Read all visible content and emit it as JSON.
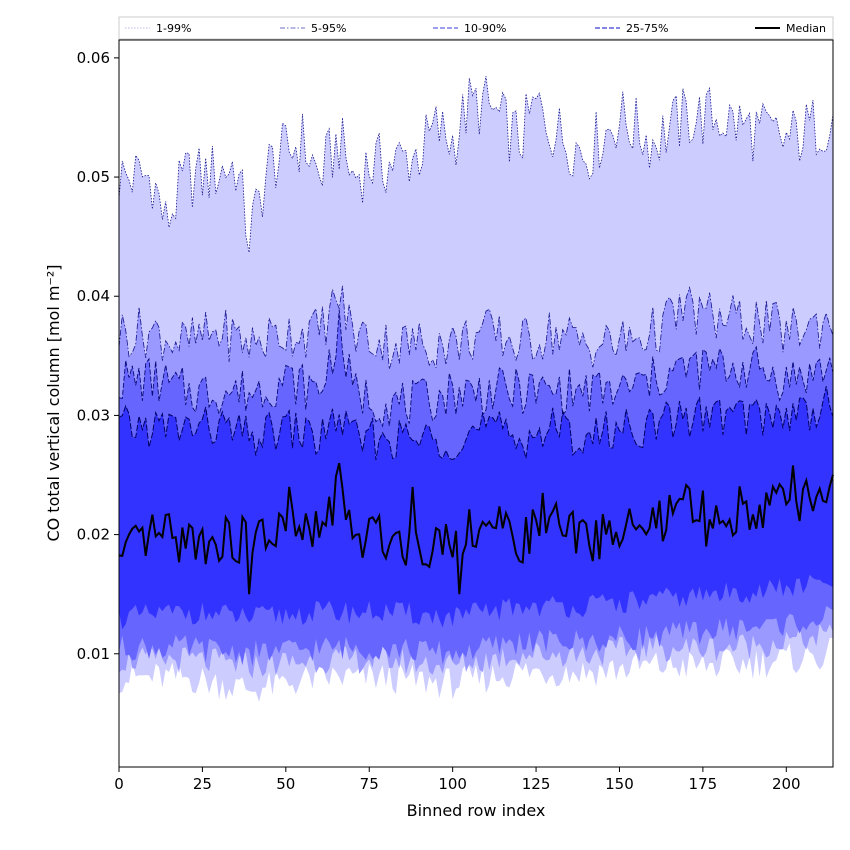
{
  "chart_data": {
    "type": "area",
    "title": "",
    "xlabel": "Binned row index",
    "ylabel": "CO total vertical column [mol m⁻²]",
    "xlim": [
      0,
      214
    ],
    "ylim": [
      0.0005,
      0.0615
    ],
    "xticks": [
      0,
      25,
      50,
      75,
      100,
      125,
      150,
      175,
      200
    ],
    "yticks": [
      0.01,
      0.02,
      0.03,
      0.04,
      0.05,
      0.06
    ],
    "ytick_labels": [
      "0.01",
      "0.02",
      "0.03",
      "0.04",
      "0.05",
      "0.06"
    ],
    "grid": false,
    "legend_position": "top",
    "n_points": 215,
    "legend": [
      {
        "label": "1-99%",
        "color": "#c8c8f0",
        "style": "dotted"
      },
      {
        "label": "5-95%",
        "color": "#8c8cd8",
        "style": "dashdot"
      },
      {
        "label": "10-90%",
        "color": "#6464e6",
        "style": "dashed"
      },
      {
        "label": "25-75%",
        "color": "#3c3cd2",
        "style": "dashed"
      },
      {
        "label": "Median",
        "color": "#000000",
        "style": "solid"
      }
    ],
    "bands": [
      {
        "name": "1-99%",
        "fill": "#ccccff",
        "upper_keys": [
          [
            0,
            0.05
          ],
          [
            5,
            0.05
          ],
          [
            10,
            0.05
          ],
          [
            14,
            0.046
          ],
          [
            20,
            0.05
          ],
          [
            25,
            0.05
          ],
          [
            35,
            0.051
          ],
          [
            39,
            0.045
          ],
          [
            45,
            0.051
          ],
          [
            50,
            0.052
          ],
          [
            55,
            0.053
          ],
          [
            60,
            0.05
          ],
          [
            66,
            0.053
          ],
          [
            70,
            0.05
          ],
          [
            75,
            0.051
          ],
          [
            80,
            0.051
          ],
          [
            90,
            0.052
          ],
          [
            95,
            0.054
          ],
          [
            100,
            0.053
          ],
          [
            105,
            0.056
          ],
          [
            110,
            0.056
          ],
          [
            120,
            0.053
          ],
          [
            125,
            0.056
          ],
          [
            130,
            0.054
          ],
          [
            140,
            0.052
          ],
          [
            150,
            0.055
          ],
          [
            160,
            0.053
          ],
          [
            170,
            0.055
          ],
          [
            180,
            0.055
          ],
          [
            190,
            0.054
          ],
          [
            200,
            0.053
          ],
          [
            214,
            0.055
          ]
        ],
        "lower_keys": [
          [
            0,
            0.008
          ],
          [
            20,
            0.008
          ],
          [
            40,
            0.007
          ],
          [
            60,
            0.008
          ],
          [
            80,
            0.008
          ],
          [
            100,
            0.0075
          ],
          [
            120,
            0.0085
          ],
          [
            140,
            0.0085
          ],
          [
            160,
            0.009
          ],
          [
            180,
            0.009
          ],
          [
            200,
            0.0095
          ],
          [
            214,
            0.01
          ]
        ]
      },
      {
        "name": "5-95%",
        "fill": "#9999ff",
        "upper_keys": [
          [
            0,
            0.037
          ],
          [
            10,
            0.037
          ],
          [
            20,
            0.036
          ],
          [
            30,
            0.037
          ],
          [
            40,
            0.036
          ],
          [
            50,
            0.037
          ],
          [
            60,
            0.037
          ],
          [
            66,
            0.04
          ],
          [
            70,
            0.037
          ],
          [
            80,
            0.036
          ],
          [
            90,
            0.036
          ],
          [
            100,
            0.036
          ],
          [
            110,
            0.037
          ],
          [
            120,
            0.036
          ],
          [
            130,
            0.037
          ],
          [
            140,
            0.036
          ],
          [
            150,
            0.036
          ],
          [
            160,
            0.037
          ],
          [
            170,
            0.039
          ],
          [
            180,
            0.038
          ],
          [
            190,
            0.038
          ],
          [
            200,
            0.037
          ],
          [
            214,
            0.038
          ]
        ],
        "lower_keys": [
          [
            0,
            0.0095
          ],
          [
            20,
            0.0095
          ],
          [
            40,
            0.009
          ],
          [
            60,
            0.0095
          ],
          [
            80,
            0.0095
          ],
          [
            100,
            0.009
          ],
          [
            120,
            0.01
          ],
          [
            140,
            0.01
          ],
          [
            160,
            0.0105
          ],
          [
            180,
            0.0105
          ],
          [
            200,
            0.011
          ],
          [
            214,
            0.0115
          ]
        ]
      },
      {
        "name": "10-90%",
        "fill": "#6666ff",
        "upper_keys": [
          [
            0,
            0.033
          ],
          [
            10,
            0.033
          ],
          [
            20,
            0.032
          ],
          [
            30,
            0.032
          ],
          [
            40,
            0.032
          ],
          [
            50,
            0.033
          ],
          [
            60,
            0.032
          ],
          [
            66,
            0.037
          ],
          [
            70,
            0.032
          ],
          [
            80,
            0.031
          ],
          [
            90,
            0.031
          ],
          [
            100,
            0.032
          ],
          [
            110,
            0.032
          ],
          [
            120,
            0.032
          ],
          [
            130,
            0.032
          ],
          [
            140,
            0.032
          ],
          [
            150,
            0.032
          ],
          [
            160,
            0.033
          ],
          [
            170,
            0.034
          ],
          [
            180,
            0.034
          ],
          [
            190,
            0.034
          ],
          [
            200,
            0.033
          ],
          [
            214,
            0.034
          ]
        ],
        "lower_keys": [
          [
            0,
            0.0105
          ],
          [
            20,
            0.0105
          ],
          [
            40,
            0.01
          ],
          [
            60,
            0.0105
          ],
          [
            80,
            0.0105
          ],
          [
            100,
            0.01
          ],
          [
            120,
            0.011
          ],
          [
            140,
            0.011
          ],
          [
            160,
            0.0115
          ],
          [
            180,
            0.012
          ],
          [
            200,
            0.0125
          ],
          [
            214,
            0.013
          ]
        ]
      },
      {
        "name": "25-75%",
        "fill": "#3333ff",
        "upper_keys": [
          [
            0,
            0.029
          ],
          [
            10,
            0.029
          ],
          [
            20,
            0.029
          ],
          [
            30,
            0.029
          ],
          [
            40,
            0.028
          ],
          [
            50,
            0.029
          ],
          [
            60,
            0.028
          ],
          [
            66,
            0.03
          ],
          [
            70,
            0.028
          ],
          [
            80,
            0.028
          ],
          [
            90,
            0.028
          ],
          [
            100,
            0.028
          ],
          [
            110,
            0.029
          ],
          [
            120,
            0.028
          ],
          [
            130,
            0.029
          ],
          [
            140,
            0.028
          ],
          [
            150,
            0.029
          ],
          [
            160,
            0.029
          ],
          [
            170,
            0.03
          ],
          [
            180,
            0.03
          ],
          [
            190,
            0.03
          ],
          [
            200,
            0.03
          ],
          [
            214,
            0.031
          ]
        ],
        "lower_keys": [
          [
            0,
            0.013
          ],
          [
            20,
            0.0135
          ],
          [
            40,
            0.013
          ],
          [
            60,
            0.0135
          ],
          [
            80,
            0.0135
          ],
          [
            100,
            0.013
          ],
          [
            120,
            0.014
          ],
          [
            140,
            0.014
          ],
          [
            160,
            0.0145
          ],
          [
            180,
            0.015
          ],
          [
            200,
            0.0155
          ],
          [
            214,
            0.016
          ]
        ]
      }
    ],
    "median": {
      "name": "Median",
      "color": "#000000",
      "keys": [
        [
          0,
          0.0175
        ],
        [
          10,
          0.02
        ],
        [
          20,
          0.0195
        ],
        [
          30,
          0.0195
        ],
        [
          40,
          0.0195
        ],
        [
          50,
          0.0205
        ],
        [
          60,
          0.02
        ],
        [
          66,
          0.024
        ],
        [
          70,
          0.0195
        ],
        [
          80,
          0.02
        ],
        [
          90,
          0.019
        ],
        [
          100,
          0.02
        ],
        [
          110,
          0.021
        ],
        [
          120,
          0.0195
        ],
        [
          130,
          0.021
        ],
        [
          140,
          0.0195
        ],
        [
          150,
          0.0205
        ],
        [
          160,
          0.0205
        ],
        [
          170,
          0.0225
        ],
        [
          180,
          0.0215
        ],
        [
          190,
          0.0225
        ],
        [
          200,
          0.0225
        ],
        [
          214,
          0.024
        ]
      ],
      "spikes": [
        [
          66,
          0.026
        ],
        [
          39,
          0.015
        ],
        [
          51,
          0.024
        ],
        [
          88,
          0.024
        ],
        [
          102,
          0.015
        ],
        [
          127,
          0.0235
        ],
        [
          176,
          0.019
        ],
        [
          202,
          0.0258
        ]
      ]
    }
  }
}
